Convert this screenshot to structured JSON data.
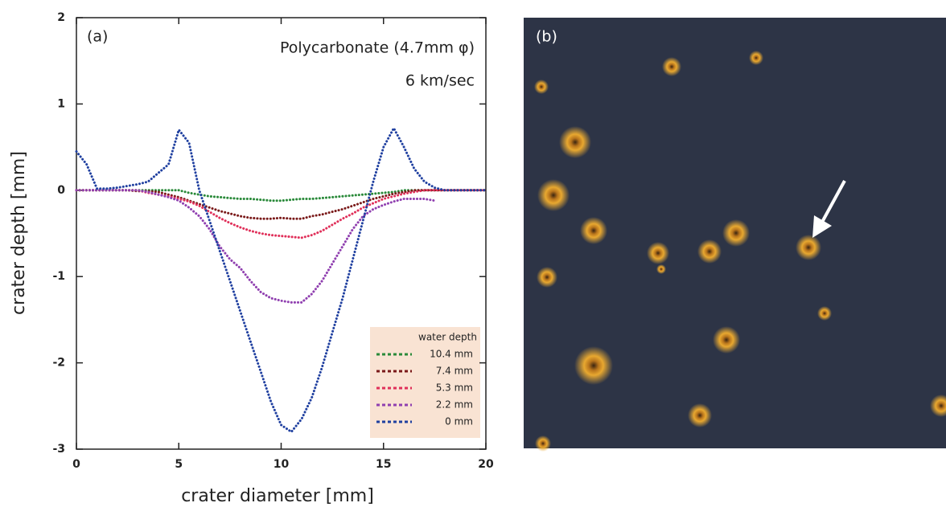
{
  "chart_data": {
    "type": "line",
    "panel_label": "(a)",
    "annotations": [
      "Polycarbonate (4.7mm φ)",
      "6 km/sec"
    ],
    "xlabel": "crater diameter [mm]",
    "ylabel": "crater depth [mm]",
    "legend_title": "water depth",
    "legend": "lower right",
    "photo_label": "(b)",
    "xlim": [
      0,
      20
    ],
    "ylim": [
      -3,
      2
    ],
    "xticks": [
      0,
      5,
      10,
      15,
      20
    ],
    "yticks": [
      -3,
      -2,
      -1,
      0,
      1,
      2
    ],
    "x": [
      0,
      0.5,
      1,
      1.5,
      2,
      2.5,
      3,
      3.5,
      4,
      4.5,
      5,
      5.5,
      6,
      6.5,
      7,
      7.5,
      8,
      8.5,
      9,
      9.5,
      10,
      10.5,
      11,
      11.5,
      12,
      12.5,
      13,
      13.5,
      14,
      14.5,
      15,
      15.5,
      16,
      16.5,
      17,
      17.5,
      18,
      18.5,
      19,
      19.5,
      20
    ],
    "series": [
      {
        "name": "10.4 mm",
        "color": "#2a8a3a",
        "values": [
          0,
          0,
          0,
          0,
          0,
          0,
          0,
          0,
          0,
          0,
          0,
          -0.03,
          -0.05,
          -0.07,
          -0.08,
          -0.09,
          -0.1,
          -0.1,
          -0.11,
          -0.12,
          -0.12,
          -0.11,
          -0.1,
          -0.1,
          -0.09,
          -0.08,
          -0.07,
          -0.06,
          -0.05,
          -0.04,
          -0.03,
          -0.02,
          0,
          0,
          0,
          0,
          0,
          0,
          0,
          0,
          0
        ]
      },
      {
        "name": "7.4 mm",
        "color": "#7a1a1a",
        "values": [
          0,
          0,
          0,
          0,
          0,
          0,
          -0.01,
          -0.01,
          -0.02,
          -0.05,
          -0.08,
          -0.12,
          -0.16,
          -0.2,
          -0.24,
          -0.27,
          -0.3,
          -0.32,
          -0.33,
          -0.33,
          -0.32,
          -0.33,
          -0.33,
          -0.3,
          -0.28,
          -0.25,
          -0.22,
          -0.18,
          -0.14,
          -0.1,
          -0.07,
          -0.04,
          -0.02,
          0,
          0,
          0,
          0,
          0,
          0,
          0,
          0
        ]
      },
      {
        "name": "5.3 mm",
        "color": "#e0305a",
        "values": [
          0,
          0,
          0,
          0,
          0,
          0,
          0,
          -0.03,
          -0.05,
          -0.07,
          -0.1,
          -0.13,
          -0.18,
          -0.25,
          -0.32,
          -0.38,
          -0.43,
          -0.47,
          -0.5,
          -0.52,
          -0.53,
          -0.54,
          -0.55,
          -0.52,
          -0.47,
          -0.4,
          -0.33,
          -0.27,
          -0.2,
          -0.15,
          -0.1,
          -0.07,
          -0.04,
          -0.02,
          0,
          0,
          0,
          0,
          0,
          0,
          0
        ]
      },
      {
        "name": "2.2 mm",
        "color": "#9040b0",
        "values": [
          0,
          0,
          0,
          0,
          0,
          0,
          0,
          -0.02,
          -0.05,
          -0.08,
          -0.12,
          -0.2,
          -0.3,
          -0.45,
          -0.65,
          -0.8,
          -0.9,
          -1.05,
          -1.18,
          -1.25,
          -1.28,
          -1.3,
          -1.3,
          -1.2,
          -1.05,
          -0.85,
          -0.65,
          -0.45,
          -0.3,
          -0.22,
          -0.17,
          -0.13,
          -0.1,
          -0.1,
          -0.1,
          -0.12,
          null,
          null,
          null,
          null,
          null
        ]
      },
      {
        "name": "0 mm",
        "color": "#2040a0",
        "values": [
          0.45,
          0.3,
          0.02,
          0.02,
          0.03,
          0.05,
          0.07,
          0.1,
          0.2,
          0.3,
          0.7,
          0.55,
          0,
          -0.35,
          -0.7,
          -1.05,
          -1.4,
          -1.75,
          -2.1,
          -2.45,
          -2.72,
          -2.8,
          -2.65,
          -2.4,
          -2.05,
          -1.65,
          -1.25,
          -0.8,
          -0.35,
          0.1,
          0.5,
          0.72,
          0.5,
          0.25,
          0.1,
          0.03,
          0,
          0,
          0,
          0,
          0
        ]
      }
    ]
  }
}
